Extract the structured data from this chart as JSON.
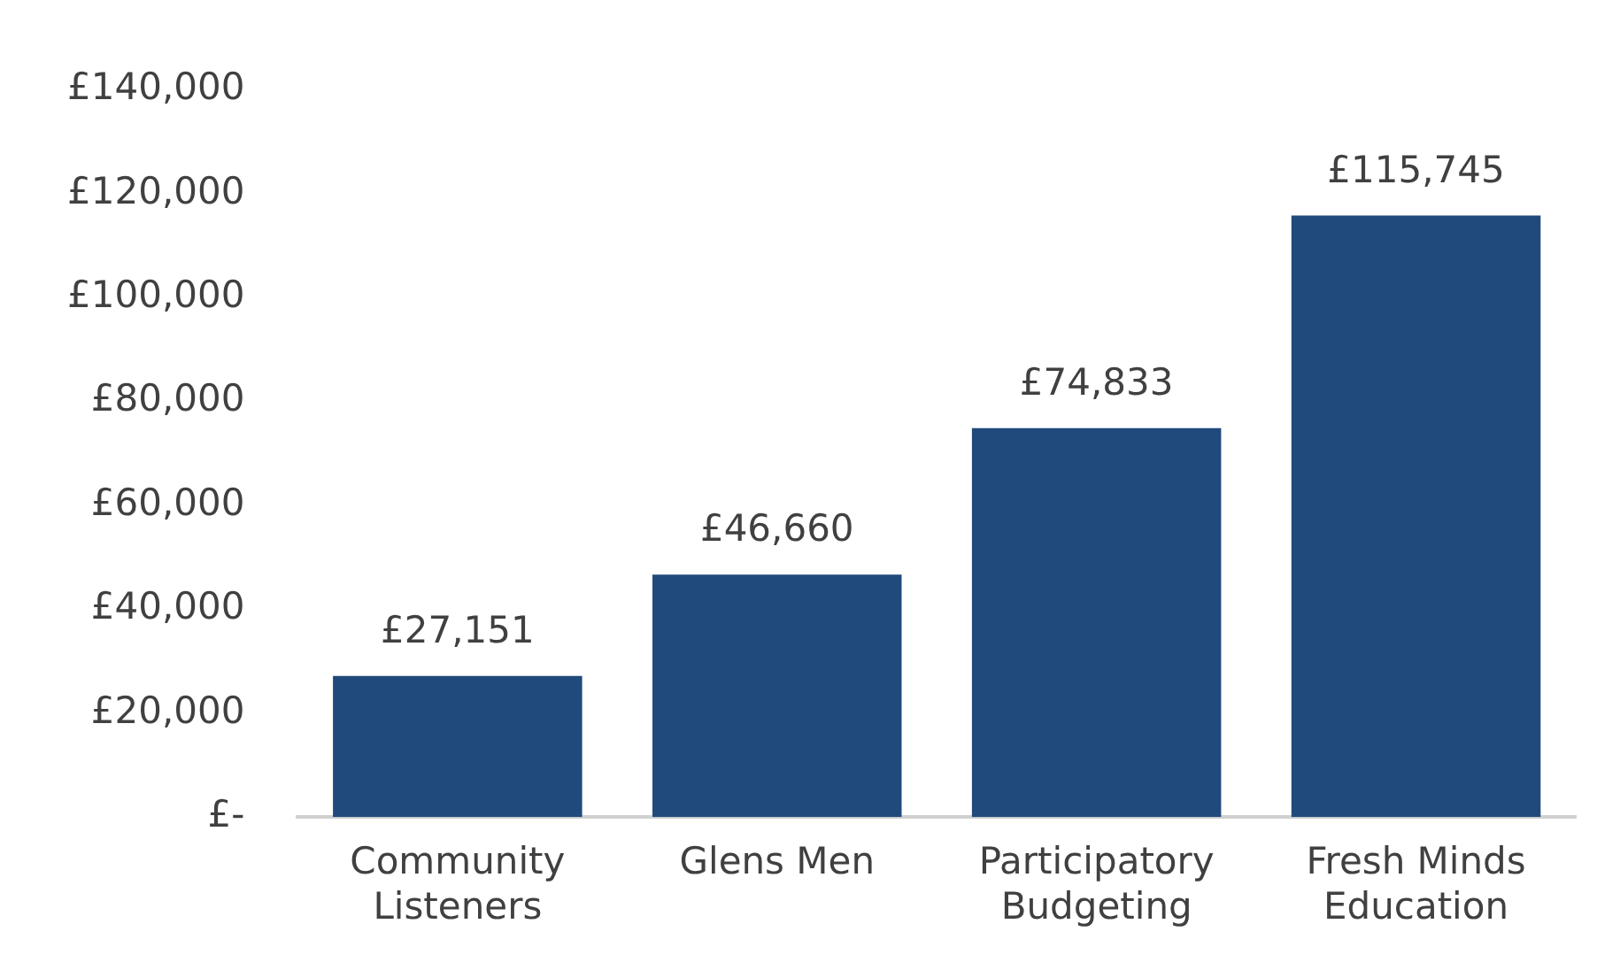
{
  "chart_data": {
    "type": "bar",
    "categories": [
      "Community Listeners",
      "Glens Men",
      "Participatory Budgeting",
      "Fresh Minds Education"
    ],
    "values": [
      27151,
      46660,
      74833,
      115745
    ],
    "value_labels": [
      "£27,151",
      "£46,660",
      "£74,833",
      "£115,745"
    ],
    "color": "#204a7c",
    "ylim": [
      0,
      140000
    ],
    "yticks": [
      {
        "value": 0,
        "label": "£-"
      },
      {
        "value": 20000,
        "label": "£20,000"
      },
      {
        "value": 40000,
        "label": "£40,000"
      },
      {
        "value": 60000,
        "label": "£60,000"
      },
      {
        "value": 80000,
        "label": "£80,000"
      },
      {
        "value": 100000,
        "label": "£100,000"
      },
      {
        "value": 120000,
        "label": "£120,000"
      },
      {
        "value": 140000,
        "label": "£140,000"
      }
    ],
    "grid": false,
    "legend": false
  }
}
